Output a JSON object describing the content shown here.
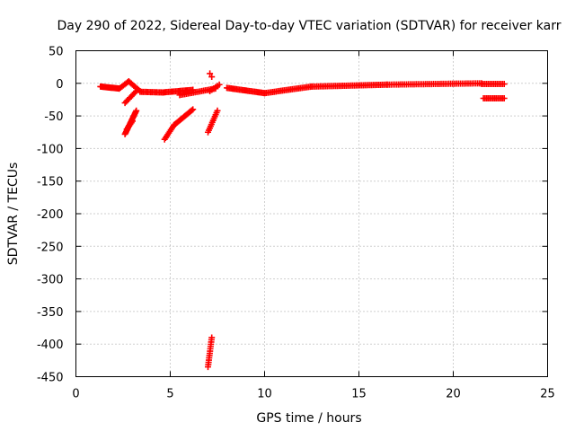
{
  "chart_data": {
    "type": "scatter",
    "title": "Day 290 of 2022, Sidereal Day-to-day VTEC variation (SDTVAR) for receiver karr",
    "xlabel": "GPS time / hours",
    "ylabel": "SDTVAR / TECUs",
    "xlim": [
      0,
      25
    ],
    "ylim": [
      -450,
      50
    ],
    "xticks": [
      0,
      5,
      10,
      15,
      20,
      25
    ],
    "yticks": [
      50,
      0,
      -50,
      -100,
      -150,
      -200,
      -250,
      -300,
      -350,
      -400,
      -450
    ],
    "grid": true,
    "marker": "plus",
    "color": "#ff0000",
    "segments": [
      {
        "x": [
          1.3,
          2.3
        ],
        "y": [
          -5,
          -8
        ],
        "n": 20
      },
      {
        "x": [
          2.3,
          2.8
        ],
        "y": [
          -8,
          3
        ],
        "n": 8
      },
      {
        "x": [
          2.8,
          3.4
        ],
        "y": [
          3,
          -12
        ],
        "n": 10
      },
      {
        "x": [
          2.6,
          3.2
        ],
        "y": [
          -30,
          -12
        ],
        "n": 10
      },
      {
        "x": [
          3.4,
          4.6
        ],
        "y": [
          -13,
          -14
        ],
        "n": 16
      },
      {
        "x": [
          4.6,
          6.2
        ],
        "y": [
          -14,
          -10
        ],
        "n": 22
      },
      {
        "x": [
          5.5,
          7.4
        ],
        "y": [
          -18,
          -8
        ],
        "n": 22
      },
      {
        "x": [
          2.6,
          3.2
        ],
        "y": [
          -78,
          -42
        ],
        "n": 20
      },
      {
        "x": [
          2.7,
          3.0
        ],
        "y": [
          -70,
          -58
        ],
        "n": 6
      },
      {
        "x": [
          4.7,
          5.2
        ],
        "y": [
          -86,
          -64
        ],
        "n": 10
      },
      {
        "x": [
          5.2,
          6.2
        ],
        "y": [
          -64,
          -40
        ],
        "n": 18
      },
      {
        "x": [
          7.0,
          7.5
        ],
        "y": [
          -75,
          -42
        ],
        "n": 12
      },
      {
        "x": [
          7.1,
          7.6
        ],
        "y": [
          -12,
          -2
        ],
        "n": 6
      },
      {
        "x": [
          7.1,
          7.2
        ],
        "y": [
          15,
          10
        ],
        "n": 2
      },
      {
        "x": [
          7.0,
          7.2
        ],
        "y": [
          -435,
          -390
        ],
        "n": 14
      },
      {
        "x": [
          8.0,
          10.0
        ],
        "y": [
          -7,
          -15
        ],
        "n": 28
      },
      {
        "x": [
          10.0,
          12.5
        ],
        "y": [
          -15,
          -5
        ],
        "n": 30
      },
      {
        "x": [
          12.5,
          16.5
        ],
        "y": [
          -5,
          -2
        ],
        "n": 45
      },
      {
        "x": [
          16.5,
          21.5
        ],
        "y": [
          -2,
          0
        ],
        "n": 50
      },
      {
        "x": [
          21.5,
          22.7
        ],
        "y": [
          -1,
          -1
        ],
        "n": 14
      },
      {
        "x": [
          21.6,
          22.7
        ],
        "y": [
          -23,
          -23
        ],
        "n": 14
      }
    ]
  }
}
